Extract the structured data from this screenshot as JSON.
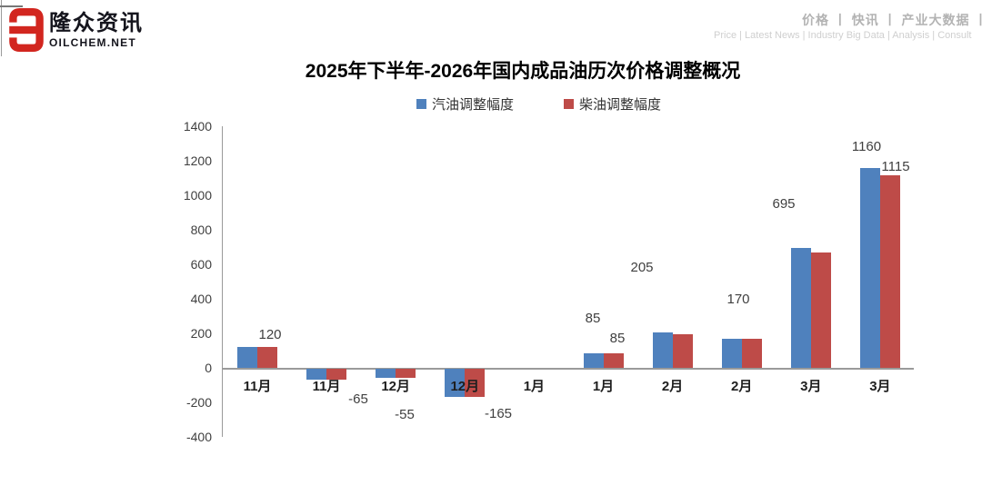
{
  "header": {
    "logo": {
      "brand_cn": "隆众资讯",
      "brand_en": "OILCHEM.NET",
      "logo_color": "#d2261f"
    },
    "nav_cn": "价格 丨 快讯 丨 产业大数据 丨 分析 丨",
    "nav_en": "Price  |  Latest News  |  Industry Big Data  |  Analysis  |  Consult"
  },
  "chart_data": {
    "type": "bar",
    "title": "2025年下半年-2026年国内成品油历次价格调整概况",
    "categories": [
      "11月",
      "11月",
      "12月",
      "12月",
      "1月",
      "1月",
      "2月",
      "2月",
      "3月",
      "3月"
    ],
    "series": [
      {
        "name": "汽油调整幅度",
        "color": "#4F81BD",
        "values": [
          120,
          -65,
          -55,
          -165,
          0,
          85,
          205,
          170,
          695,
          1160
        ]
      },
      {
        "name": "柴油调整幅度",
        "color": "#BE4B48",
        "values": [
          120,
          -65,
          -55,
          -165,
          0,
          85,
          195,
          170,
          670,
          1115
        ]
      }
    ],
    "ylim": [
      -400,
      1400
    ],
    "ytick_step": 200,
    "grid": false,
    "legend_position": "top",
    "data_labels": [
      {
        "text": "120",
        "x": 297,
        "y": 369
      },
      {
        "text": "-65",
        "x": 394,
        "y": 440
      },
      {
        "text": "-55",
        "x": 445,
        "y": 457
      },
      {
        "text": "-165",
        "x": 548,
        "y": 456
      },
      {
        "text": "85",
        "x": 652,
        "y": 351
      },
      {
        "text": "85",
        "x": 679,
        "y": 373
      },
      {
        "text": "205",
        "x": 706,
        "y": 295
      },
      {
        "text": "170",
        "x": 812,
        "y": 330
      },
      {
        "text": "695",
        "x": 862,
        "y": 225
      },
      {
        "text": "1160",
        "x": 953,
        "y": 162
      },
      {
        "text": "1115",
        "x": 985,
        "y": 184
      }
    ]
  }
}
